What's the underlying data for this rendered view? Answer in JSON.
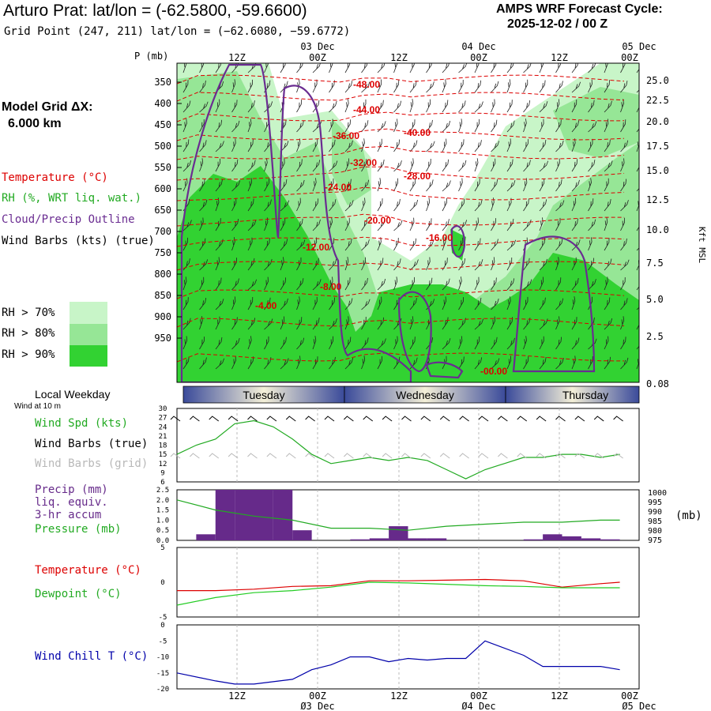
{
  "header": {
    "title": "Arturo Prat:  lat/lon = (-62.5800, -59.6600)",
    "subtitle": "Grid Point (247, 211) lat/lon = (−62.6080, −59.6772)",
    "cycle_label": "AMPS WRF Forecast Cycle:",
    "cycle_value": "2025-12-02 / 00  Z"
  },
  "legend": {
    "grid_label": "Model Grid ΔX:",
    "grid_value": "6.000 km",
    "temperature": "Temperature (°C)",
    "rh": "RH (%, WRT liq. wat.)",
    "cloud": "Cloud/Precip Outline",
    "barbs": "Wind Barbs (kts) (true)",
    "rh70": "RH > 70%",
    "rh80": "RH > 80%",
    "rh90": "RH > 90%",
    "colors": {
      "rh70": "#c8f5c8",
      "rh80": "#96e696",
      "rh90": "#32d232",
      "temp": "#dd0000",
      "cloud": "#6a2c91",
      "precip": "#662a8a",
      "pressure": "#22aa22",
      "dewpoint": "#22cc22",
      "windchill": "#0000aa"
    }
  },
  "time_axis": {
    "top_dates": [
      "03 Dec",
      "04 Dec",
      "05 Dec"
    ],
    "top_hours": [
      "12Z",
      "00Z",
      "12Z",
      "00Z",
      "12Z",
      "00Z"
    ],
    "bottom_hours": [
      "12Z",
      "00Z",
      "12Z",
      "00Z",
      "12Z",
      "00Z"
    ],
    "bottom_dates": [
      "Ø3 Dec",
      "Ø4 Dec",
      "Ø5 Dec"
    ],
    "weekdays": [
      "Tuesday",
      "Wednesday",
      "Thursday"
    ],
    "local_weekday_label": "Local Weekday",
    "wind_at_10m": "Wind at 10 m"
  },
  "cross_section": {
    "pressure_unit": "P (mb)",
    "pressure_levels": [
      "350",
      "400",
      "450",
      "500",
      "550",
      "600",
      "650",
      "700",
      "750",
      "800",
      "850",
      "900",
      "950"
    ],
    "height_levels": [
      "25.0",
      "22.5",
      "20.0",
      "17.5",
      "15.0",
      "12.5",
      "10.0",
      "7.5",
      "5.0",
      "2.5",
      "0.08"
    ],
    "height_axis_label": "Kft MSL",
    "isotherm_labels": [
      "-48.00",
      "-44.00",
      "-40.00",
      "-36.00",
      "-32.00",
      "-28.00",
      "-24.00",
      "-20.00",
      "-16.00",
      "-12.00",
      "-8.00",
      "-4.00",
      "-00.00"
    ]
  },
  "chart_data": [
    {
      "type": "line",
      "title": "Wind Speed (kts)",
      "ylabel": "Wind Spd (kts)",
      "legend": [
        "Wind Spd (kts)",
        "Wind Barbs (true)",
        "Wind Barbs (grid)"
      ],
      "ylim": [
        6,
        30
      ],
      "yticks": [
        "30",
        "27",
        "24",
        "21",
        "18",
        "15",
        "12",
        "9",
        "6"
      ],
      "x_hours": [
        0,
        3,
        6,
        9,
        12,
        15,
        18,
        21,
        24,
        27,
        30,
        33,
        36,
        39,
        42,
        45,
        48,
        51,
        54,
        57,
        60,
        63,
        66,
        69
      ],
      "values": [
        15,
        18,
        20,
        25,
        26,
        24,
        20,
        15,
        12,
        13,
        14,
        13,
        14,
        13,
        10,
        7,
        10,
        12,
        14,
        14,
        15,
        15,
        14,
        15
      ]
    },
    {
      "type": "bar",
      "title": "Precip (mm) liq. equiv. 3-hr accum",
      "ylabel": "Precip (mm)",
      "legend": [
        "Precip (mm)",
        "liq. equiv.",
        "3-hr accum",
        "Pressure (mb)"
      ],
      "ylim": [
        0,
        2.5
      ],
      "yticks": [
        "2.5",
        "2.0",
        "1.5",
        "1.0",
        "0.5",
        "0.0"
      ],
      "x_hours": [
        0,
        3,
        6,
        9,
        12,
        15,
        18,
        21,
        24,
        27,
        30,
        33,
        36,
        39,
        42,
        45,
        48,
        51,
        54,
        57,
        60,
        63,
        66,
        69
      ],
      "values": [
        0,
        0.3,
        2.5,
        2.5,
        2.5,
        2.5,
        0.5,
        0,
        0,
        0.05,
        0.1,
        0.7,
        0.1,
        0.1,
        0,
        0,
        0,
        0,
        0.05,
        0.3,
        0.2,
        0.1,
        0.05,
        0
      ],
      "series2_name": "Pressure (mb)",
      "pressure_ylim": [
        975,
        1000
      ],
      "pressure_yticks": [
        "1000",
        "995",
        "990",
        "985",
        "980",
        "975"
      ],
      "pressure_unit": "(mb)",
      "pressure_hours": [
        0,
        6,
        12,
        18,
        24,
        30,
        36,
        42,
        48,
        54,
        60,
        66,
        69
      ],
      "pressure_values": [
        995,
        990,
        987,
        985,
        981,
        981,
        980,
        982,
        983,
        984,
        984,
        985,
        985
      ]
    },
    {
      "type": "line",
      "title": "Temperature / Dewpoint (°C)",
      "legend": [
        "Temperature (°C)",
        "Dewpoint (°C)"
      ],
      "ylim": [
        -5,
        5
      ],
      "yticks": [
        "5",
        "0",
        "-5"
      ],
      "series": [
        {
          "name": "Temperature (°C)",
          "x_hours": [
            0,
            6,
            12,
            18,
            24,
            30,
            36,
            42,
            48,
            54,
            60,
            66,
            69
          ],
          "values": [
            -1.2,
            -1.2,
            -1.0,
            -0.6,
            -0.5,
            0.2,
            0.2,
            0.3,
            0.4,
            0.2,
            -0.7,
            -0.2,
            0.0
          ]
        },
        {
          "name": "Dewpoint (°C)",
          "x_hours": [
            0,
            6,
            12,
            18,
            24,
            30,
            36,
            42,
            48,
            54,
            60,
            66,
            69
          ],
          "values": [
            -3.3,
            -2.2,
            -1.5,
            -1.2,
            -0.7,
            0.0,
            -0.1,
            -0.3,
            -0.5,
            -0.6,
            -0.8,
            -0.8,
            -0.8
          ]
        }
      ]
    },
    {
      "type": "line",
      "title": "Wind Chill T (°C)",
      "ylabel": "Wind Chill T (°C)",
      "ylim": [
        -20,
        0
      ],
      "yticks": [
        "0",
        "-5",
        "-10",
        "-15",
        "-20"
      ],
      "x_hours": [
        0,
        6,
        9,
        12,
        18,
        21,
        24,
        27,
        30,
        33,
        36,
        39,
        42,
        45,
        48,
        54,
        57,
        60,
        63,
        66,
        69
      ],
      "values": [
        -15,
        -17.5,
        -18.5,
        -18.5,
        -17,
        -14,
        -12.5,
        -10,
        -10,
        -11.5,
        -10.5,
        -11,
        -10.5,
        -10.5,
        -5,
        -9.5,
        -13,
        -13,
        -13,
        -13,
        -14
      ]
    }
  ]
}
